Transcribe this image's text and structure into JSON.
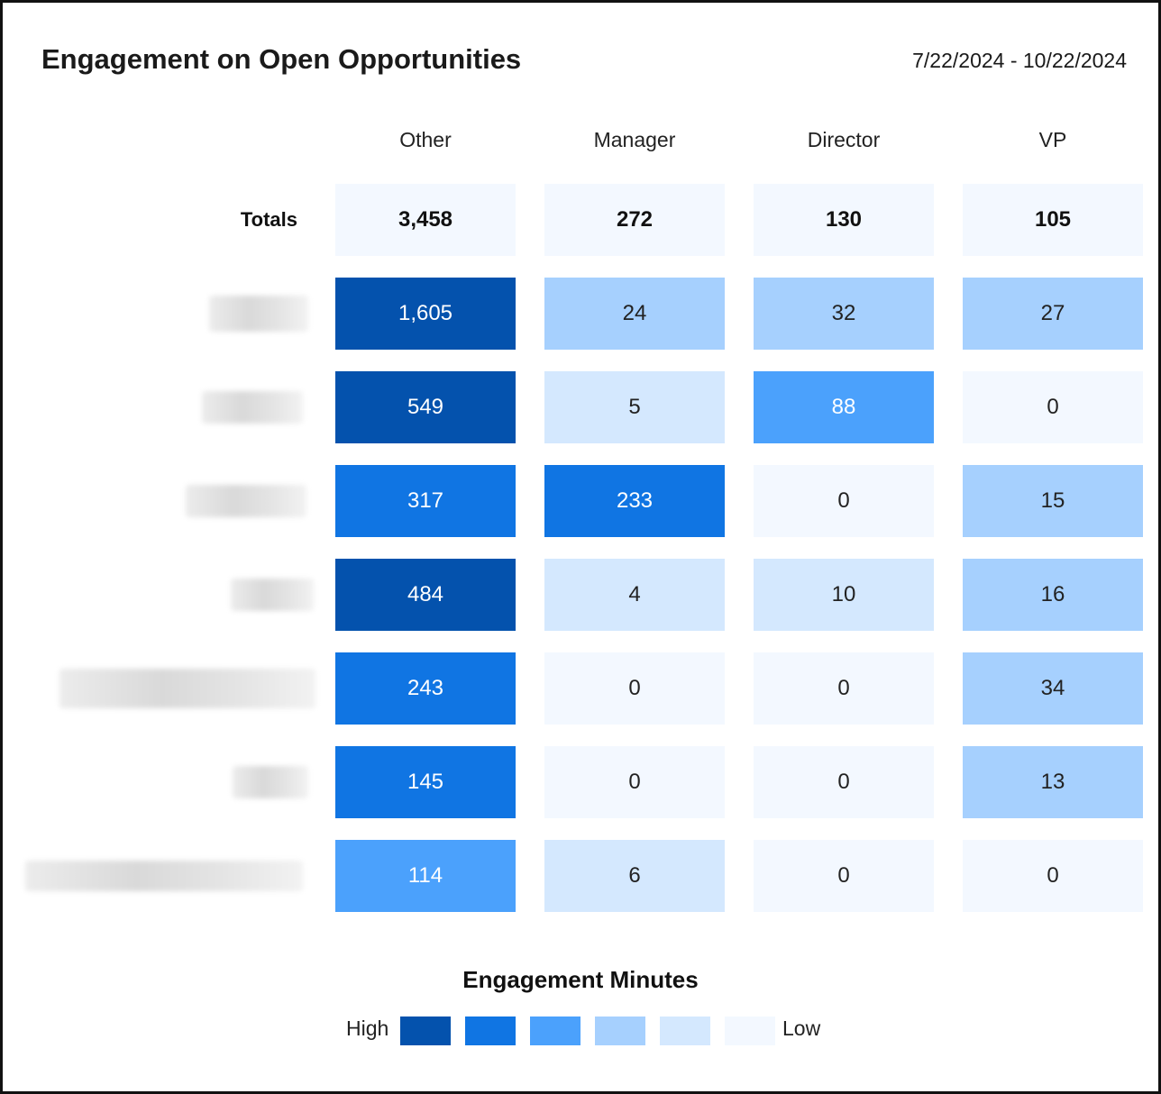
{
  "header": {
    "title": "Engagement on Open Opportunities",
    "date_range": "7/22/2024 - 10/22/2024"
  },
  "chart_data": {
    "type": "heatmap",
    "columns": [
      "Other",
      "Manager",
      "Director",
      "VP"
    ],
    "totals_label": "Totals",
    "totals": [
      "3,458",
      "272",
      "130",
      "105"
    ],
    "rows": [
      {
        "label": "",
        "values": [
          "1,605",
          "24",
          "32",
          "27"
        ],
        "levels": [
          1,
          4,
          4,
          4
        ]
      },
      {
        "label": "",
        "values": [
          "549",
          "5",
          "88",
          "0"
        ],
        "levels": [
          1,
          5,
          3,
          6
        ]
      },
      {
        "label": "",
        "values": [
          "317",
          "233",
          "0",
          "15"
        ],
        "levels": [
          2,
          2,
          6,
          4
        ]
      },
      {
        "label": "",
        "values": [
          "484",
          "4",
          "10",
          "16"
        ],
        "levels": [
          1,
          5,
          5,
          4
        ]
      },
      {
        "label": "",
        "values": [
          "243",
          "0",
          "0",
          "34"
        ],
        "levels": [
          2,
          6,
          6,
          4
        ]
      },
      {
        "label": "",
        "values": [
          "145",
          "0",
          "0",
          "13"
        ],
        "levels": [
          2,
          6,
          6,
          4
        ]
      },
      {
        "label": "",
        "values": [
          "114",
          "6",
          "0",
          "0"
        ],
        "levels": [
          3,
          5,
          6,
          6
        ]
      }
    ],
    "legend": {
      "title": "Engagement Minutes",
      "high_label": "High",
      "low_label": "Low",
      "colors": [
        "#0452ad",
        "#1075e3",
        "#4ba1fc",
        "#a6d0fe",
        "#d4e8fe",
        "#f3f8ff"
      ]
    },
    "text_colors": {
      "dark_bg": "#ffffff",
      "light_bg": "#222222"
    }
  }
}
